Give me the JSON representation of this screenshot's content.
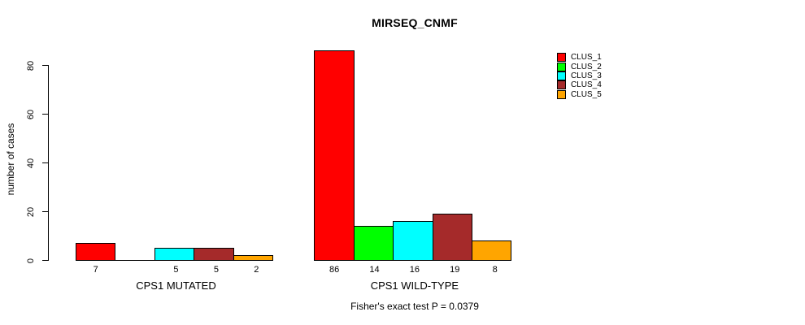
{
  "title": "MIRSEQ_CNMF",
  "chart_data": {
    "type": "bar",
    "title": "MIRSEQ_CNMF",
    "ylabel": "number of cases",
    "xlabel": "",
    "ylim": [
      0,
      86
    ],
    "yticks": [
      0,
      20,
      40,
      60,
      80
    ],
    "grid": false,
    "legend_position": "right-outside-top",
    "categories": [
      "CLUS_1",
      "CLUS_2",
      "CLUS_3",
      "CLUS_4",
      "CLUS_5"
    ],
    "colors": [
      "#FF0000",
      "#00FF00",
      "#00FFFF",
      "#A52A2A",
      "#FFA500"
    ],
    "groups": [
      {
        "label": "CPS1 MUTATED",
        "values": [
          7,
          0,
          5,
          5,
          2
        ]
      },
      {
        "label": "CPS1 WILD-TYPE",
        "values": [
          86,
          14,
          16,
          19,
          8
        ]
      }
    ],
    "bar_value_labels": [
      "7",
      "5",
      "5",
      "2",
      "86",
      "14",
      "16",
      "19",
      "8"
    ],
    "subtitle": "Fisher's exact test P = 0.0379"
  },
  "legend": {
    "items": [
      {
        "label": "CLUS_1",
        "color": "#FF0000"
      },
      {
        "label": "CLUS_2",
        "color": "#00FF00"
      },
      {
        "label": "CLUS_3",
        "color": "#00FFFF"
      },
      {
        "label": "CLUS_4",
        "color": "#A52A2A"
      },
      {
        "label": "CLUS_5",
        "color": "#FFA500"
      }
    ]
  }
}
